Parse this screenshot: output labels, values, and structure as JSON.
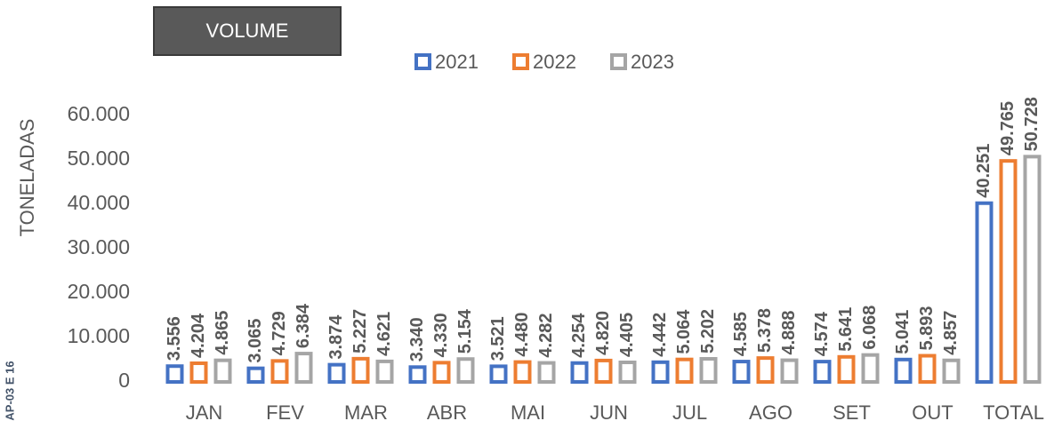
{
  "chart_data": {
    "type": "bar",
    "title": "VOLUME",
    "y_label": "TONELADAS",
    "annotation": "AP-03 E 16",
    "categories": [
      "JAN",
      "FEV",
      "MAR",
      "ABR",
      "MAI",
      "JUN",
      "JUL",
      "AGO",
      "SET",
      "OUT",
      "TOTAL"
    ],
    "series": [
      {
        "name": "2021",
        "color": "#4472c4",
        "values": [
          3556,
          3065,
          3874,
          3340,
          3521,
          4254,
          4442,
          4585,
          4574,
          5041,
          40251
        ],
        "value_labels": [
          "3.556",
          "3.065",
          "3.874",
          "3.340",
          "3.521",
          "4.254",
          "4.442",
          "4.585",
          "4.574",
          "5.041",
          "40.251"
        ]
      },
      {
        "name": "2022",
        "color": "#ed7d31",
        "values": [
          4204,
          4729,
          5227,
          4330,
          4480,
          4820,
          5064,
          5378,
          5641,
          5893,
          49765
        ],
        "value_labels": [
          "4.204",
          "4.729",
          "5.227",
          "4.330",
          "4.480",
          "4.820",
          "5.064",
          "5.378",
          "5.641",
          "5.893",
          "49.765"
        ]
      },
      {
        "name": "2023",
        "color": "#a5a5a5",
        "values": [
          4865,
          6384,
          4621,
          5154,
          4282,
          4405,
          5202,
          4888,
          6068,
          4857,
          50728
        ],
        "value_labels": [
          "4.865",
          "6.384",
          "4.621",
          "5.154",
          "4.282",
          "4.405",
          "5.202",
          "4.888",
          "6.068",
          "4.857",
          "50.728"
        ]
      }
    ],
    "ylim": [
      0,
      60000
    ],
    "yticks": [
      0,
      {
        "value": 10000,
        "label": "10.000"
      },
      {
        "value": 20000,
        "label": "20.000"
      },
      {
        "value": 30000,
        "label": "30.000"
      },
      {
        "value": 40000,
        "label": "40.000"
      },
      {
        "value": 50000,
        "label": "50.000"
      },
      {
        "value": 60000,
        "label": "60.000"
      }
    ],
    "grid": false,
    "legend": "top"
  }
}
